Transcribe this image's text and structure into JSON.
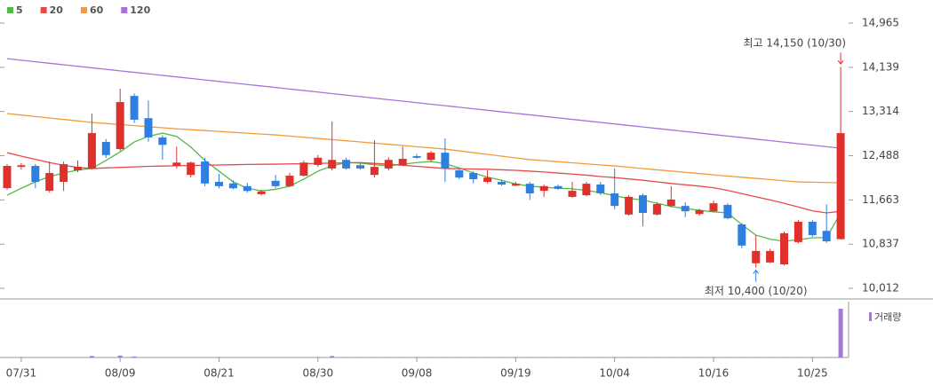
{
  "chart_data": {
    "type": "candlestick",
    "categories": [
      null,
      "07/31",
      null,
      null,
      null,
      null,
      null,
      null,
      "08/09",
      null,
      null,
      null,
      null,
      null,
      null,
      "08/21",
      null,
      null,
      null,
      null,
      null,
      null,
      "08/30",
      null,
      null,
      null,
      null,
      null,
      null,
      "09/08",
      null,
      null,
      null,
      null,
      null,
      null,
      "09/19",
      null,
      null,
      null,
      null,
      null,
      null,
      "10/04",
      null,
      null,
      null,
      null,
      null,
      null,
      "10/16",
      null,
      null,
      null,
      null,
      null,
      null,
      "10/25",
      null,
      null
    ],
    "open": [
      11883,
      12280,
      12297,
      11833,
      12000,
      12215,
      12250,
      12745,
      12612,
      13605,
      13190,
      12830,
      12300,
      12130,
      12380,
      12000,
      11970,
      11920,
      11770,
      12020,
      11920,
      12115,
      12315,
      12250,
      12410,
      12310,
      12130,
      12250,
      12315,
      12480,
      12410,
      12545,
      12215,
      12165,
      11999,
      12000,
      11930,
      11965,
      11833,
      11920,
      11720,
      11750,
      11950,
      11785,
      11390,
      11750,
      11390,
      11550,
      11550,
      11400,
      11450,
      11570,
      11205,
      10480,
      10495,
      10460,
      10875,
      11255,
      11085,
      10930
    ],
    "high": [
      12330,
      12350,
      12330,
      12380,
      12380,
      12400,
      13275,
      12800,
      13740,
      13650,
      13520,
      12870,
      12660,
      12380,
      12450,
      12150,
      12030,
      11980,
      11850,
      12130,
      12165,
      12400,
      12500,
      13125,
      12450,
      12350,
      12780,
      12460,
      12660,
      12520,
      12580,
      12810,
      12250,
      12200,
      12215,
      12030,
      11999,
      12000,
      11950,
      11950,
      12000,
      11999,
      12000,
      12250,
      11750,
      11780,
      11620,
      11920,
      11620,
      11500,
      11650,
      11600,
      11230,
      11000,
      10750,
      11070,
      11290,
      11290,
      11580,
      14150
    ],
    "low": [
      11850,
      12230,
      11883,
      11800,
      11830,
      12180,
      12230,
      12450,
      12580,
      13100,
      12750,
      12415,
      12250,
      12080,
      11920,
      11880,
      11860,
      11800,
      11750,
      11880,
      11900,
      12100,
      12280,
      12215,
      12230,
      12230,
      12080,
      12215,
      12300,
      12430,
      12380,
      12000,
      12050,
      11970,
      11970,
      11930,
      11920,
      11663,
      11720,
      11850,
      11700,
      11730,
      11750,
      11485,
      11370,
      11170,
      11370,
      11520,
      11340,
      11370,
      11430,
      11300,
      10760,
      10400,
      10480,
      10440,
      10850,
      10970,
      10860,
      10920
    ],
    "close": [
      12297,
      12310,
      11999,
      12165,
      12330,
      12280,
      12910,
      12500,
      13490,
      13160,
      12830,
      12690,
      12360,
      12360,
      11970,
      11920,
      11880,
      11830,
      11820,
      11920,
      12115,
      12360,
      12450,
      12410,
      12250,
      12250,
      12280,
      12410,
      12430,
      12450,
      12545,
      12250,
      12080,
      12050,
      12080,
      11950,
      11965,
      11785,
      11920,
      11870,
      11833,
      11965,
      11785,
      11550,
      11720,
      11420,
      11585,
      11670,
      11450,
      11470,
      11600,
      11320,
      10810,
      10710,
      10710,
      11040,
      11255,
      11005,
      10890,
      12910
    ],
    "up_color": "#e0302c",
    "down_color": "#2f7fe0",
    "series": [
      {
        "name": "5",
        "color": "#55b84a",
        "values": [
          11750,
          11880,
          12000,
          12100,
          12165,
          12220,
          12250,
          12400,
          12560,
          12745,
          12850,
          12910,
          12850,
          12650,
          12400,
          12200,
          12000,
          11880,
          11833,
          11860,
          11920,
          12050,
          12200,
          12300,
          12363,
          12350,
          12320,
          12300,
          12330,
          12360,
          12380,
          12340,
          12260,
          12165,
          12090,
          12030,
          11960,
          11920,
          11900,
          11880,
          11870,
          11840,
          11800,
          11740,
          11690,
          11663,
          11600,
          11540,
          11500,
          11470,
          11440,
          11420,
          11200,
          11005,
          10930,
          10890,
          10920,
          10955,
          10960,
          11420
        ]
      },
      {
        "name": "20",
        "color": "#e84a4a",
        "values": [
          12545,
          12480,
          12420,
          12360,
          12310,
          12270,
          12250,
          12260,
          12270,
          12280,
          12290,
          12295,
          12300,
          12305,
          12310,
          12315,
          12320,
          12325,
          12328,
          12330,
          12335,
          12340,
          12345,
          12350,
          12355,
          12360,
          12345,
          12330,
          12310,
          12290,
          12270,
          12250,
          12245,
          12240,
          12235,
          12225,
          12215,
          12200,
          12185,
          12165,
          12145,
          12125,
          12100,
          12080,
          12055,
          12030,
          12000,
          11970,
          11945,
          11920,
          11890,
          11840,
          11780,
          11720,
          11663,
          11600,
          11530,
          11460,
          11420,
          11450
        ]
      },
      {
        "name": "60",
        "color": "#f39a3c",
        "values": [
          13275,
          13248,
          13220,
          13193,
          13165,
          13138,
          13110,
          13090,
          13070,
          13050,
          13030,
          13010,
          12990,
          12974,
          12958,
          12942,
          12925,
          12909,
          12893,
          12877,
          12855,
          12833,
          12811,
          12789,
          12767,
          12745,
          12723,
          12701,
          12679,
          12656,
          12634,
          12612,
          12579,
          12546,
          12513,
          12481,
          12448,
          12415,
          12395,
          12376,
          12356,
          12336,
          12317,
          12297,
          12273,
          12249,
          12225,
          12202,
          12178,
          12154,
          12130,
          12108,
          12086,
          12065,
          12043,
          12021,
          11999,
          11994,
          11988,
          11983
        ]
      },
      {
        "name": "120",
        "color": "#a674d6",
        "values": [
          14300,
          14272,
          14243,
          14215,
          14187,
          14158,
          14130,
          14102,
          14073,
          14045,
          14017,
          13988,
          13960,
          13932,
          13903,
          13875,
          13847,
          13818,
          13790,
          13762,
          13733,
          13705,
          13677,
          13648,
          13620,
          13592,
          13563,
          13535,
          13507,
          13478,
          13450,
          13422,
          13393,
          13365,
          13337,
          13308,
          13280,
          13252,
          13223,
          13195,
          13167,
          13138,
          13110,
          13082,
          13053,
          13025,
          12997,
          12968,
          12940,
          12912,
          12883,
          12855,
          12827,
          12798,
          12770,
          12742,
          12713,
          12685,
          12657,
          12628
        ]
      }
    ],
    "volume": {
      "name": "거래량",
      "color": "#a07cd0",
      "values": [
        1,
        1,
        1,
        1,
        1,
        1,
        3,
        1,
        4,
        2,
        1,
        1,
        1,
        1,
        1,
        1,
        1,
        1,
        1,
        1,
        1,
        1,
        1,
        3,
        1,
        1,
        1,
        1,
        1,
        1,
        1,
        1,
        1,
        1,
        1,
        1,
        1,
        1,
        1,
        1,
        1,
        1,
        1,
        1,
        1,
        1,
        1,
        1,
        1,
        1,
        1,
        1,
        1,
        1,
        1,
        1,
        1,
        1,
        1,
        100
      ]
    },
    "ylim": [
      9830,
      15396
    ],
    "yticks": [
      {
        "value": 10012,
        "label": "10,012"
      },
      {
        "value": 10837,
        "label": "10,837"
      },
      {
        "value": 11663,
        "label": "11,663"
      },
      {
        "value": 12488,
        "label": "12,488"
      },
      {
        "value": 13314,
        "label": "13,314"
      },
      {
        "value": 14139,
        "label": "14,139"
      },
      {
        "value": 14965,
        "label": "14,965"
      }
    ],
    "annotations": [
      {
        "text": "최고 14,150 (10/30)",
        "color": "#e0302c"
      },
      {
        "text": "최저 10,400 (10/20)",
        "color": "#2f7fe0"
      }
    ]
  }
}
